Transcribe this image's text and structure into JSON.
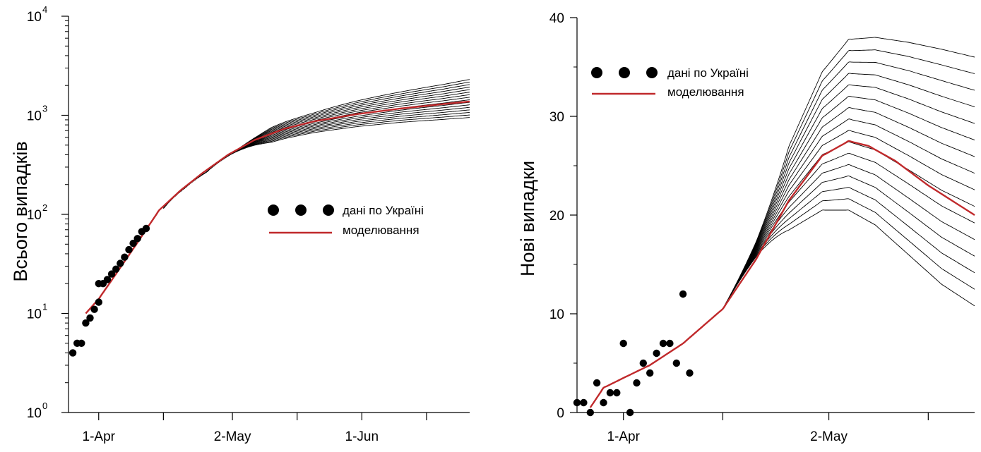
{
  "colors": {
    "model": "#c0292b",
    "scenario": "#000000",
    "data_points": "#000000",
    "axis": "#000000"
  },
  "chart_data": [
    {
      "type": "line",
      "scale": "log",
      "ylabel": "Всього випадків",
      "xlabel": "",
      "x_ticks": [
        {
          "date": "2020-04-01",
          "label": "1-Apr"
        },
        {
          "date": "2020-05-02",
          "label": "2-May"
        },
        {
          "date": "2020-06-01",
          "label": "1-Jun"
        }
      ],
      "x_minor_ticks": [
        "2020-04-16",
        "2020-05-17",
        "2020-06-16"
      ],
      "xlim": [
        "2020-03-25",
        "2020-06-26"
      ],
      "ylim": [
        1,
        10000
      ],
      "y_ticks": [
        {
          "value": 1,
          "base": "10",
          "exp": "0"
        },
        {
          "value": 10,
          "base": "10",
          "exp": "1"
        },
        {
          "value": 100,
          "base": "10",
          "exp": "2"
        },
        {
          "value": 1000,
          "base": "10",
          "exp": "3"
        },
        {
          "value": 10000,
          "base": "10",
          "exp": "4"
        }
      ],
      "legend": {
        "position": "center-right",
        "entries": [
          {
            "label": "дані по Україні",
            "kind": "markers"
          },
          {
            "label": "моделювання",
            "kind": "line"
          }
        ]
      },
      "series": [
        {
          "kind": "markers",
          "label": "дані по Україні",
          "points": [
            [
              "2020-03-26",
              4
            ],
            [
              "2020-03-27",
              5
            ],
            [
              "2020-03-28",
              5
            ],
            [
              "2020-03-29",
              8
            ],
            [
              "2020-03-30",
              9
            ],
            [
              "2020-03-31",
              11
            ],
            [
              "2020-04-01",
              13
            ],
            [
              "2020-04-01",
              20
            ],
            [
              "2020-04-02",
              20
            ],
            [
              "2020-04-03",
              22
            ],
            [
              "2020-04-04",
              25
            ],
            [
              "2020-04-05",
              28
            ],
            [
              "2020-04-06",
              32
            ],
            [
              "2020-04-07",
              37
            ],
            [
              "2020-04-08",
              44
            ],
            [
              "2020-04-09",
              51
            ],
            [
              "2020-04-10",
              57
            ],
            [
              "2020-04-11",
              67
            ],
            [
              "2020-04-12",
              72
            ]
          ]
        },
        {
          "kind": "line",
          "label": "моделювання",
          "points": [
            [
              "2020-03-29",
              10
            ],
            [
              "2020-04-01",
              14
            ],
            [
              "2020-04-05",
              25
            ],
            [
              "2020-04-10",
              52
            ],
            [
              "2020-04-15",
              110
            ],
            [
              "2020-04-20",
              175
            ],
            [
              "2020-04-25",
              260
            ],
            [
              "2020-05-01",
              400
            ],
            [
              "2020-05-07",
              560
            ],
            [
              "2020-05-14",
              730
            ],
            [
              "2020-05-21",
              870
            ],
            [
              "2020-05-31",
              1030
            ],
            [
              "2020-06-10",
              1170
            ],
            [
              "2020-06-20",
              1300
            ],
            [
              "2020-06-26",
              1380
            ]
          ]
        },
        {
          "kind": "scenario_band",
          "label": "",
          "count": 16,
          "start": "2020-04-16",
          "fork": "2020-05-01",
          "points_low": [
            [
              "2020-04-16",
              115
            ],
            [
              "2020-04-21",
              185
            ],
            [
              "2020-04-26",
              260
            ],
            [
              "2020-05-01",
              360
            ],
            [
              "2020-05-07",
              470
            ],
            [
              "2020-05-14",
              580
            ],
            [
              "2020-05-21",
              670
            ],
            [
              "2020-05-31",
              770
            ],
            [
              "2020-06-10",
              850
            ],
            [
              "2020-06-20",
              910
            ],
            [
              "2020-06-26",
              950
            ]
          ],
          "points_high": [
            [
              "2020-04-16",
              115
            ],
            [
              "2020-04-21",
              185
            ],
            [
              "2020-04-26",
              275
            ],
            [
              "2020-05-01",
              420
            ],
            [
              "2020-05-07",
              620
            ],
            [
              "2020-05-14",
              850
            ],
            [
              "2020-05-21",
              1060
            ],
            [
              "2020-05-31",
              1400
            ],
            [
              "2020-06-10",
              1720
            ],
            [
              "2020-06-20",
              2050
            ],
            [
              "2020-06-26",
              2300
            ]
          ]
        }
      ]
    },
    {
      "type": "line",
      "scale": "linear",
      "ylabel": "Нові випадки",
      "xlabel": "",
      "x_ticks": [
        {
          "date": "2020-04-01",
          "label": "1-Apr"
        },
        {
          "date": "2020-05-02",
          "label": "2-May"
        }
      ],
      "x_minor_ticks": [
        "2020-04-16",
        "2020-05-17"
      ],
      "xlim": [
        "2020-03-25",
        "2020-05-24"
      ],
      "ylim": [
        0,
        40
      ],
      "y_ticks": [
        {
          "value": 0,
          "label": "0"
        },
        {
          "value": 10,
          "label": "10"
        },
        {
          "value": 20,
          "label": "20"
        },
        {
          "value": 30,
          "label": "30"
        },
        {
          "value": 40,
          "label": "40"
        }
      ],
      "legend": {
        "position": "top-left",
        "entries": [
          {
            "label": "дані по Україні",
            "kind": "markers"
          },
          {
            "label": "моделювання",
            "kind": "line"
          }
        ]
      },
      "series": [
        {
          "kind": "markers",
          "label": "дані по Україні",
          "points": [
            [
              "2020-03-25",
              1
            ],
            [
              "2020-03-26",
              1
            ],
            [
              "2020-03-27",
              0
            ],
            [
              "2020-03-28",
              3
            ],
            [
              "2020-03-29",
              1
            ],
            [
              "2020-03-30",
              2
            ],
            [
              "2020-03-31",
              2
            ],
            [
              "2020-04-01",
              7
            ],
            [
              "2020-04-02",
              0
            ],
            [
              "2020-04-03",
              3
            ],
            [
              "2020-04-04",
              5
            ],
            [
              "2020-04-05",
              4
            ],
            [
              "2020-04-06",
              6
            ],
            [
              "2020-04-07",
              7
            ],
            [
              "2020-04-08",
              7
            ],
            [
              "2020-04-09",
              5
            ],
            [
              "2020-04-10",
              12
            ],
            [
              "2020-04-11",
              4
            ]
          ]
        },
        {
          "kind": "line",
          "label": "моделювання",
          "points": [
            [
              "2020-03-27",
              0.5
            ],
            [
              "2020-03-29",
              2.5
            ],
            [
              "2020-04-01",
              3.5
            ],
            [
              "2020-04-05",
              4.8
            ],
            [
              "2020-04-10",
              7
            ],
            [
              "2020-04-16",
              10.5
            ],
            [
              "2020-04-21",
              15.5
            ],
            [
              "2020-04-26",
              21.5
            ],
            [
              "2020-05-01",
              26
            ],
            [
              "2020-05-05",
              27.5
            ],
            [
              "2020-05-08",
              27
            ],
            [
              "2020-05-12",
              25.5
            ],
            [
              "2020-05-17",
              23
            ],
            [
              "2020-05-24",
              20
            ]
          ]
        },
        {
          "kind": "scenario_band",
          "label": "",
          "count": 16,
          "start": "2020-04-16",
          "fork": "2020-04-16",
          "points_low": [
            [
              "2020-04-16",
              10.5
            ],
            [
              "2020-04-21",
              15
            ],
            [
              "2020-04-26",
              18.5
            ],
            [
              "2020-05-01",
              20.5
            ],
            [
              "2020-05-05",
              20.5
            ],
            [
              "2020-05-09",
              19
            ],
            [
              "2020-05-14",
              16
            ],
            [
              "2020-05-19",
              13
            ],
            [
              "2020-05-24",
              10.8
            ]
          ],
          "points_high": [
            [
              "2020-04-16",
              10.5
            ],
            [
              "2020-04-21",
              18
            ],
            [
              "2020-04-26",
              27
            ],
            [
              "2020-05-01",
              34.5
            ],
            [
              "2020-05-05",
              37.8
            ],
            [
              "2020-05-09",
              38
            ],
            [
              "2020-05-14",
              37.5
            ],
            [
              "2020-05-19",
              36.8
            ],
            [
              "2020-05-24",
              36
            ]
          ]
        }
      ]
    }
  ]
}
